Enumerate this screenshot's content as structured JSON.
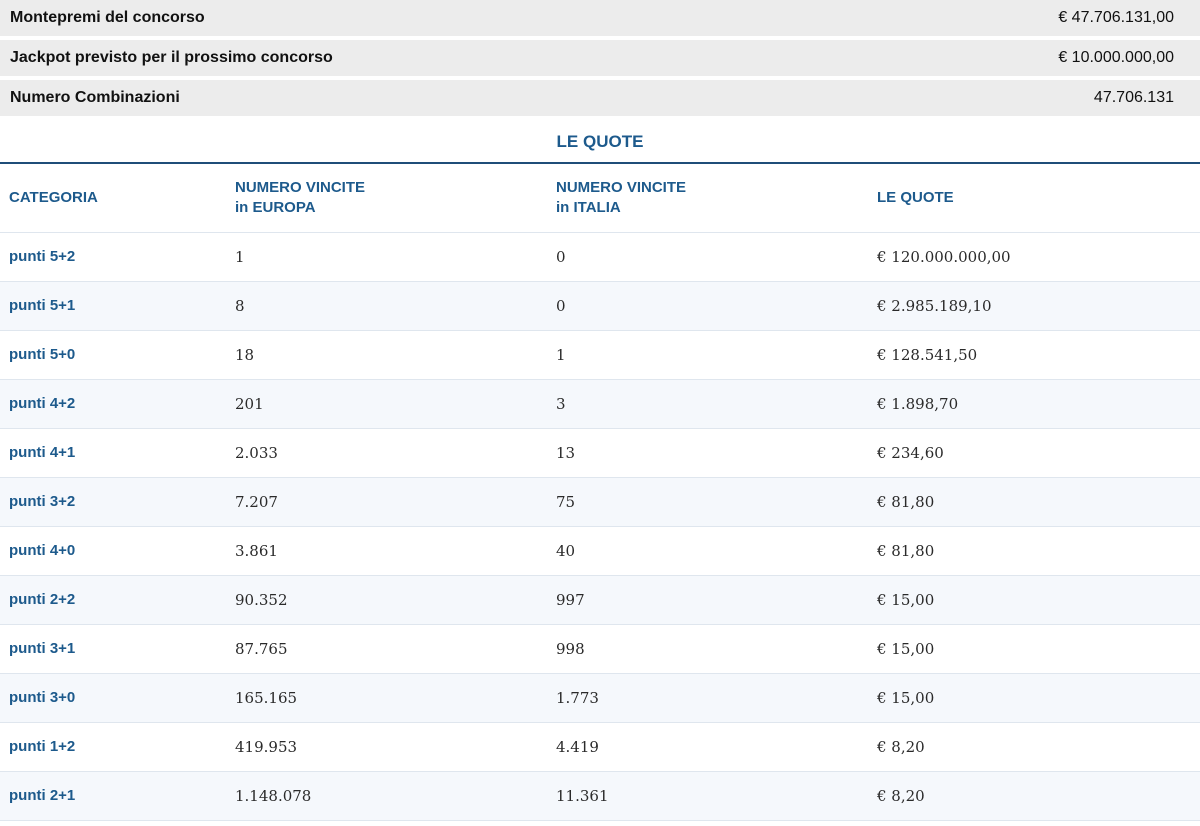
{
  "summary": [
    {
      "label": "Montepremi del concorso",
      "value": "€ 47.706.131,00"
    },
    {
      "label": "Jackpot previsto per il prossimo concorso",
      "value": "€ 10.000.000,00"
    },
    {
      "label": "Numero Combinazioni",
      "value": "47.706.131"
    }
  ],
  "quote_title": "LE QUOTE",
  "table": {
    "headers": {
      "categoria": "CATEGORIA",
      "europa_line1": "NUMERO VINCITE",
      "europa_line2": "in EUROPA",
      "italia_line1": "NUMERO VINCITE",
      "italia_line2": "in ITALIA",
      "quote": "LE QUOTE"
    },
    "rows": [
      {
        "categoria": "punti 5+2",
        "europa": "1",
        "italia": "0",
        "quota": "€ 120.000.000,00"
      },
      {
        "categoria": "punti 5+1",
        "europa": "8",
        "italia": "0",
        "quota": "€ 2.985.189,10"
      },
      {
        "categoria": "punti 5+0",
        "europa": "18",
        "italia": "1",
        "quota": "€ 128.541,50"
      },
      {
        "categoria": "punti 4+2",
        "europa": "201",
        "italia": "3",
        "quota": "€ 1.898,70"
      },
      {
        "categoria": "punti 4+1",
        "europa": "2.033",
        "italia": "13",
        "quota": "€ 234,60"
      },
      {
        "categoria": "punti 3+2",
        "europa": "7.207",
        "italia": "75",
        "quota": "€ 81,80"
      },
      {
        "categoria": "punti 4+0",
        "europa": "3.861",
        "italia": "40",
        "quota": "€ 81,80"
      },
      {
        "categoria": "punti 2+2",
        "europa": "90.352",
        "italia": "997",
        "quota": "€ 15,00"
      },
      {
        "categoria": "punti 3+1",
        "europa": "87.765",
        "italia": "998",
        "quota": "€ 15,00"
      },
      {
        "categoria": "punti 3+0",
        "europa": "165.165",
        "italia": "1.773",
        "quota": "€ 15,00"
      },
      {
        "categoria": "punti 1+2",
        "europa": "419.953",
        "italia": "4.419",
        "quota": "€ 8,20"
      },
      {
        "categoria": "punti 2+1",
        "europa": "1.148.078",
        "italia": "11.361",
        "quota": "€ 8,20"
      }
    ]
  }
}
